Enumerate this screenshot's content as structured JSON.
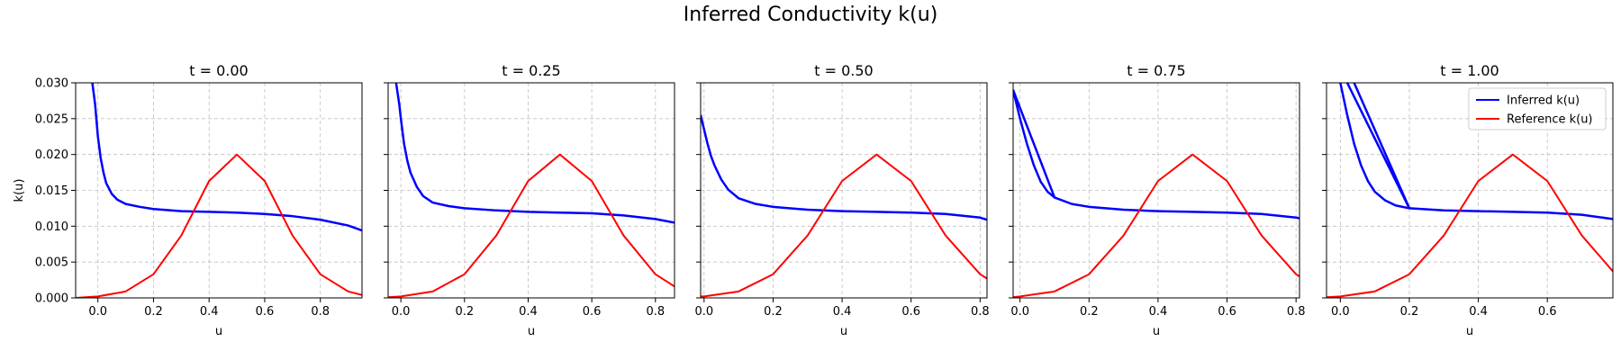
{
  "suptitle": "Inferred Conductivity k(u)",
  "legend": {
    "inferred": "Inferred k(u)",
    "reference": "Reference k(u)",
    "placement": "top-right (last panel)"
  },
  "colors": {
    "inferred": "#0000ff",
    "reference": "#ff0000",
    "grid": "#b0b0b0"
  },
  "chart_data": [
    {
      "type": "line",
      "title": "t = 0.00",
      "xlabel": "u",
      "ylabel": "k(u)",
      "xlim": [
        -0.08,
        0.95
      ],
      "ylim": [
        0,
        0.03
      ],
      "xticks": [
        0.0,
        0.2,
        0.4,
        0.6,
        0.8
      ],
      "yticks": [
        0.0,
        0.005,
        0.01,
        0.015,
        0.02,
        0.025,
        0.03
      ],
      "grid": true,
      "series": [
        {
          "name": "Inferred k(u)",
          "x": [
            -0.02,
            -0.01,
            0.0,
            0.01,
            0.02,
            0.03,
            0.05,
            0.07,
            0.1,
            0.15,
            0.2,
            0.3,
            0.4,
            0.5,
            0.6,
            0.7,
            0.8,
            0.9,
            0.95
          ],
          "y": [
            0.03,
            0.027,
            0.0225,
            0.0195,
            0.0175,
            0.016,
            0.0145,
            0.0137,
            0.0131,
            0.0127,
            0.0124,
            0.0121,
            0.012,
            0.0119,
            0.0117,
            0.0114,
            0.0109,
            0.0101,
            0.0094
          ]
        },
        {
          "name": "Reference k(u)",
          "x": [
            -0.08,
            0.0,
            0.1,
            0.2,
            0.3,
            0.4,
            0.5,
            0.6,
            0.7,
            0.8,
            0.9,
            0.95
          ],
          "y": [
            0.0,
            0.0002,
            0.0009,
            0.0033,
            0.0087,
            0.0163,
            0.02,
            0.0163,
            0.0087,
            0.0033,
            0.0009,
            0.0004
          ]
        }
      ]
    },
    {
      "type": "line",
      "title": "t = 0.25",
      "xlabel": "u",
      "ylabel": "",
      "xlim": [
        -0.04,
        0.86
      ],
      "ylim": [
        0,
        0.03
      ],
      "xticks": [
        0.0,
        0.2,
        0.4,
        0.6,
        0.8
      ],
      "yticks": [
        0.0,
        0.005,
        0.01,
        0.015,
        0.02,
        0.025,
        0.03
      ],
      "grid": true,
      "series": [
        {
          "name": "Inferred k(u)",
          "x": [
            -0.015,
            -0.005,
            0.0,
            0.01,
            0.02,
            0.03,
            0.05,
            0.07,
            0.1,
            0.15,
            0.2,
            0.3,
            0.4,
            0.5,
            0.6,
            0.7,
            0.8,
            0.86
          ],
          "y": [
            0.03,
            0.027,
            0.025,
            0.0215,
            0.0192,
            0.0175,
            0.0155,
            0.0142,
            0.0133,
            0.0128,
            0.0125,
            0.0122,
            0.012,
            0.0119,
            0.0118,
            0.0115,
            0.011,
            0.0105
          ]
        },
        {
          "name": "Reference k(u)",
          "x": [
            -0.04,
            0.0,
            0.1,
            0.2,
            0.3,
            0.4,
            0.5,
            0.6,
            0.7,
            0.8,
            0.86
          ],
          "y": [
            0.0001,
            0.0002,
            0.0009,
            0.0033,
            0.0087,
            0.0163,
            0.02,
            0.0163,
            0.0087,
            0.0033,
            0.0016
          ]
        }
      ]
    },
    {
      "type": "line",
      "title": "t = 0.50",
      "xlabel": "u",
      "ylabel": "",
      "xlim": [
        -0.01,
        0.82
      ],
      "ylim": [
        0,
        0.03
      ],
      "xticks": [
        0.0,
        0.2,
        0.4,
        0.6,
        0.8
      ],
      "yticks": [
        0.0,
        0.005,
        0.01,
        0.015,
        0.02,
        0.025,
        0.03
      ],
      "grid": true,
      "series": [
        {
          "name": "Inferred k(u)",
          "x": [
            -0.01,
            0.0,
            0.01,
            0.02,
            0.03,
            0.05,
            0.07,
            0.1,
            0.15,
            0.2,
            0.3,
            0.4,
            0.5,
            0.6,
            0.7,
            0.8,
            0.82
          ],
          "y": [
            0.0255,
            0.0235,
            0.0215,
            0.0198,
            0.0185,
            0.0165,
            0.0151,
            0.0139,
            0.0131,
            0.0127,
            0.0123,
            0.0121,
            0.012,
            0.0119,
            0.0117,
            0.0112,
            0.0109
          ]
        },
        {
          "name": "Reference k(u)",
          "x": [
            -0.01,
            0.0,
            0.1,
            0.2,
            0.3,
            0.4,
            0.5,
            0.6,
            0.7,
            0.8,
            0.82
          ],
          "y": [
            0.0002,
            0.0002,
            0.0009,
            0.0033,
            0.0087,
            0.0163,
            0.02,
            0.0163,
            0.0087,
            0.0033,
            0.0027
          ]
        }
      ]
    },
    {
      "type": "line",
      "title": "t = 0.75",
      "xlabel": "u",
      "ylabel": "",
      "xlim": [
        -0.02,
        0.81
      ],
      "ylim": [
        0,
        0.03
      ],
      "xticks": [
        0.0,
        0.2,
        0.4,
        0.6,
        0.8
      ],
      "yticks": [
        0.0,
        0.005,
        0.01,
        0.015,
        0.02,
        0.025,
        0.03
      ],
      "grid": true,
      "series": [
        {
          "name": "Inferred k(u)",
          "x": [
            -0.02,
            0.0,
            0.02,
            0.04,
            0.06,
            0.08,
            0.1,
            0.15,
            0.2,
            0.3,
            0.4,
            0.5,
            0.6,
            0.7,
            0.8,
            0.81
          ],
          "y": [
            0.029,
            0.025,
            0.0215,
            0.0185,
            0.0162,
            0.0148,
            0.014,
            0.0131,
            0.0127,
            0.0123,
            0.0121,
            0.012,
            0.0119,
            0.0117,
            0.0112,
            0.0111
          ]
        },
        {
          "name": "Inferred k(u)",
          "x": [
            -0.02,
            0.1
          ],
          "y": [
            0.029,
            0.014
          ]
        },
        {
          "name": "Reference k(u)",
          "x": [
            -0.02,
            0.0,
            0.1,
            0.2,
            0.3,
            0.4,
            0.5,
            0.6,
            0.7,
            0.8,
            0.81
          ],
          "y": [
            0.0001,
            0.0002,
            0.0009,
            0.0033,
            0.0087,
            0.0163,
            0.02,
            0.0163,
            0.0087,
            0.0033,
            0.003
          ]
        }
      ]
    },
    {
      "type": "line",
      "title": "t = 1.00",
      "xlabel": "u",
      "ylabel": "",
      "xlim": [
        -0.04,
        0.79
      ],
      "ylim": [
        0,
        0.03
      ],
      "xticks": [
        0.0,
        0.2,
        0.4,
        0.6
      ],
      "yticks": [
        0.0,
        0.005,
        0.01,
        0.015,
        0.02,
        0.025,
        0.03
      ],
      "grid": true,
      "series": [
        {
          "name": "Inferred k(u)",
          "x": [
            0.0,
            0.02,
            0.04,
            0.06,
            0.08,
            0.1,
            0.13,
            0.16,
            0.2,
            0.3,
            0.4,
            0.5,
            0.6,
            0.7,
            0.79
          ],
          "y": [
            0.03,
            0.0255,
            0.0215,
            0.0185,
            0.0163,
            0.0148,
            0.0136,
            0.0129,
            0.0125,
            0.0122,
            0.0121,
            0.012,
            0.0119,
            0.0116,
            0.011
          ]
        },
        {
          "name": "Inferred k(u)",
          "x": [
            0.02,
            0.2
          ],
          "y": [
            0.03,
            0.0125
          ]
        },
        {
          "name": "Inferred k(u)",
          "x": [
            0.04,
            0.2
          ],
          "y": [
            0.03,
            0.0125
          ]
        },
        {
          "name": "Reference k(u)",
          "x": [
            -0.04,
            0.0,
            0.1,
            0.2,
            0.3,
            0.4,
            0.5,
            0.6,
            0.7,
            0.79
          ],
          "y": [
            0.0001,
            0.0002,
            0.0009,
            0.0033,
            0.0087,
            0.0163,
            0.02,
            0.0163,
            0.0087,
            0.0037
          ]
        }
      ]
    }
  ]
}
